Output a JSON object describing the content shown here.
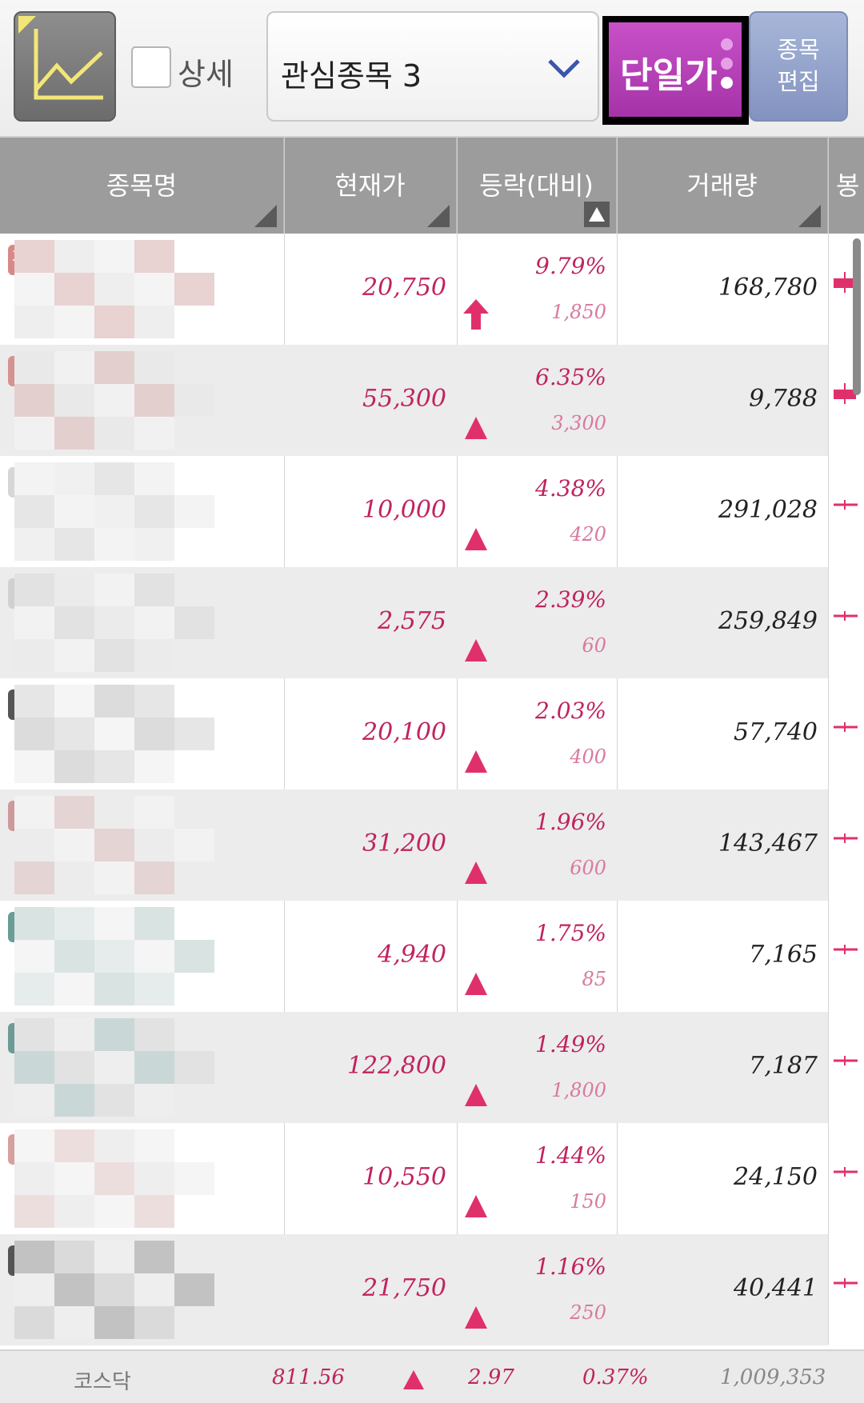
{
  "toolbar": {
    "chart_icon": "line-chart-icon",
    "detail_label": "상세",
    "detail_checked": false,
    "watchlist_selected": "관심종목 3",
    "price_mode_label": "단일가",
    "edit_label_line1": "종목",
    "edit_label_line2": "편집"
  },
  "table": {
    "headers": [
      "종목명",
      "현재가",
      "등락(대비)",
      "거래량",
      "봉"
    ],
    "rows": [
      {
        "market_badge": "거",
        "price": "20,750",
        "pct": "9.79%",
        "change": "1,850",
        "volume": "168,780",
        "direction": "limit-up"
      },
      {
        "price": "55,300",
        "pct": "6.35%",
        "change": "3,300",
        "volume": "9,788",
        "direction": "up"
      },
      {
        "price": "10,000",
        "pct": "4.38%",
        "change": "420",
        "volume": "291,028",
        "direction": "up"
      },
      {
        "price": "2,575",
        "pct": "2.39%",
        "change": "60",
        "volume": "259,849",
        "direction": "up"
      },
      {
        "price": "20,100",
        "pct": "2.03%",
        "change": "400",
        "volume": "57,740",
        "direction": "up"
      },
      {
        "price": "31,200",
        "pct": "1.96%",
        "change": "600",
        "volume": "143,467",
        "direction": "up"
      },
      {
        "price": "4,940",
        "pct": "1.75%",
        "change": "85",
        "volume": "7,165",
        "direction": "up"
      },
      {
        "price": "122,800",
        "pct": "1.49%",
        "change": "1,800",
        "volume": "7,187",
        "direction": "up"
      },
      {
        "price": "10,550",
        "pct": "1.44%",
        "change": "150",
        "volume": "24,150",
        "direction": "up"
      },
      {
        "price": "21,750",
        "pct": "1.16%",
        "change": "250",
        "volume": "40,441",
        "direction": "up"
      }
    ]
  },
  "footer": {
    "index_name": "코스닥",
    "index_value": "811.56",
    "index_change": "2.97",
    "index_pct": "0.37%",
    "index_volume": "1,009,353"
  },
  "colors": {
    "rise": "#c0235f",
    "price_mode_button": "#b63fb8",
    "header_bg": "#9c9c9c"
  }
}
